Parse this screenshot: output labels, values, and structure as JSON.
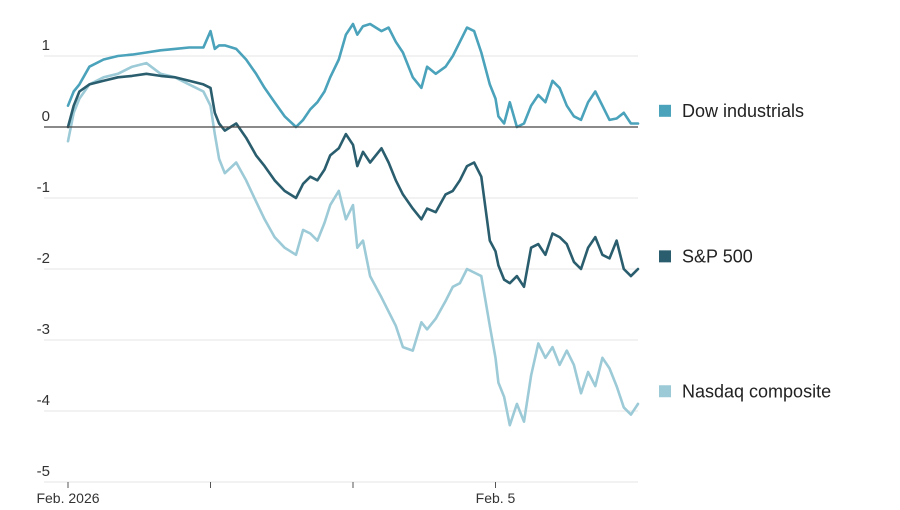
{
  "chart_data": {
    "type": "line",
    "title": "",
    "xlabel": "",
    "ylabel": "",
    "ylim": [
      -5,
      1.6
    ],
    "yticks": [
      1,
      0,
      -1,
      -2,
      -3,
      -4,
      -5
    ],
    "ytick_labels": [
      "1",
      "0",
      "-1",
      "-2",
      "-3",
      "-4",
      "-5"
    ],
    "x_range": [
      0,
      40
    ],
    "xticks": [
      0,
      10,
      20,
      30
    ],
    "xtick_labels": [
      "Feb. 2026",
      "",
      "",
      "Feb. 5"
    ],
    "grid": true,
    "legend_placement": "right, beside each line",
    "series": [
      {
        "name": "Dow industrials",
        "color": "#4aa2bb",
        "x": [
          0,
          0.4,
          0.8,
          1.5,
          2.5,
          3.5,
          4.5,
          5.5,
          6.5,
          7.5,
          8.5,
          9.5,
          10,
          10.3,
          10.6,
          11,
          11.8,
          12.5,
          13.2,
          13.8,
          14.5,
          15.2,
          16,
          16.5,
          17,
          17.5,
          18,
          18.4,
          19,
          19.5,
          20,
          20.3,
          20.7,
          21.2,
          22,
          22.5,
          23,
          23.5,
          24.2,
          24.8,
          25.2,
          25.8,
          26.5,
          27,
          27.5,
          28,
          28.5,
          29,
          29.6,
          30,
          30.2,
          30.6,
          31,
          31.5,
          32,
          32.5,
          33,
          33.5,
          34,
          34.5,
          35,
          35.5,
          36,
          36.5,
          37,
          37.5,
          38,
          38.5,
          39,
          39.5,
          40
        ],
        "y": [
          0.3,
          0.5,
          0.6,
          0.85,
          0.95,
          1.0,
          1.02,
          1.05,
          1.08,
          1.1,
          1.12,
          1.12,
          1.35,
          1.1,
          1.15,
          1.15,
          1.1,
          0.95,
          0.75,
          0.55,
          0.35,
          0.15,
          0.0,
          0.1,
          0.25,
          0.35,
          0.5,
          0.7,
          0.95,
          1.3,
          1.45,
          1.3,
          1.42,
          1.45,
          1.35,
          1.4,
          1.2,
          1.05,
          0.7,
          0.55,
          0.85,
          0.75,
          0.85,
          1.0,
          1.2,
          1.4,
          1.35,
          1.05,
          0.6,
          0.4,
          0.15,
          0.05,
          0.35,
          0.0,
          0.05,
          0.3,
          0.45,
          0.35,
          0.65,
          0.55,
          0.3,
          0.15,
          0.1,
          0.35,
          0.5,
          0.3,
          0.1,
          0.12,
          0.2,
          0.05,
          0.05
        ]
      },
      {
        "name": "S&P 500",
        "color": "#2a5e6e",
        "x": [
          0,
          0.4,
          0.8,
          1.5,
          2.5,
          3.5,
          4.5,
          5.5,
          6.5,
          7.5,
          8.5,
          9.5,
          10,
          10.3,
          10.6,
          11,
          11.8,
          12.5,
          13.2,
          13.8,
          14.5,
          15.2,
          16,
          16.5,
          17,
          17.5,
          18,
          18.4,
          19,
          19.5,
          20,
          20.3,
          20.7,
          21.2,
          22,
          22.5,
          23,
          23.5,
          24.2,
          24.8,
          25.2,
          25.8,
          26.5,
          27,
          27.5,
          28,
          28.5,
          29,
          29.6,
          30,
          30.2,
          30.6,
          31,
          31.5,
          32,
          32.5,
          33,
          33.5,
          34,
          34.5,
          35,
          35.5,
          36,
          36.5,
          37,
          37.5,
          38,
          38.5,
          39,
          39.5,
          40
        ],
        "y": [
          0.0,
          0.3,
          0.5,
          0.6,
          0.65,
          0.7,
          0.72,
          0.75,
          0.72,
          0.7,
          0.65,
          0.6,
          0.55,
          0.2,
          0.05,
          -0.05,
          0.05,
          -0.15,
          -0.4,
          -0.55,
          -0.75,
          -0.9,
          -1.0,
          -0.8,
          -0.7,
          -0.75,
          -0.6,
          -0.4,
          -0.3,
          -0.1,
          -0.25,
          -0.55,
          -0.35,
          -0.5,
          -0.3,
          -0.5,
          -0.75,
          -0.95,
          -1.15,
          -1.3,
          -1.15,
          -1.2,
          -0.95,
          -0.9,
          -0.75,
          -0.55,
          -0.5,
          -0.7,
          -1.6,
          -1.75,
          -1.95,
          -2.15,
          -2.2,
          -2.1,
          -2.25,
          -1.7,
          -1.65,
          -1.8,
          -1.5,
          -1.55,
          -1.65,
          -1.9,
          -2.0,
          -1.7,
          -1.55,
          -1.8,
          -1.85,
          -1.6,
          -2.0,
          -2.1,
          -2.0
        ]
      },
      {
        "name": "Nasdaq composite",
        "color": "#9ccad7",
        "x": [
          0,
          0.4,
          0.8,
          1.5,
          2.5,
          3.5,
          4.5,
          5.5,
          6.5,
          7.5,
          8.5,
          9.5,
          10,
          10.3,
          10.6,
          11,
          11.8,
          12.5,
          13.2,
          13.8,
          14.5,
          15.2,
          16,
          16.5,
          17,
          17.5,
          18,
          18.4,
          19,
          19.5,
          20,
          20.3,
          20.7,
          21.2,
          22,
          22.5,
          23,
          23.5,
          24.2,
          24.8,
          25.2,
          25.8,
          26.5,
          27,
          27.5,
          28,
          28.5,
          29,
          29.6,
          30,
          30.2,
          30.6,
          31,
          31.5,
          32,
          32.5,
          33,
          33.5,
          34,
          34.5,
          35,
          35.5,
          36,
          36.5,
          37,
          37.5,
          38,
          38.5,
          39,
          39.5,
          40
        ],
        "y": [
          -0.2,
          0.2,
          0.4,
          0.6,
          0.7,
          0.75,
          0.85,
          0.9,
          0.75,
          0.7,
          0.6,
          0.5,
          0.3,
          -0.1,
          -0.45,
          -0.65,
          -0.5,
          -0.75,
          -1.05,
          -1.3,
          -1.55,
          -1.7,
          -1.8,
          -1.45,
          -1.5,
          -1.6,
          -1.35,
          -1.1,
          -0.9,
          -1.3,
          -1.1,
          -1.7,
          -1.6,
          -2.1,
          -2.4,
          -2.6,
          -2.8,
          -3.1,
          -3.15,
          -2.75,
          -2.85,
          -2.7,
          -2.45,
          -2.25,
          -2.2,
          -2.0,
          -2.05,
          -2.1,
          -2.8,
          -3.25,
          -3.6,
          -3.8,
          -4.2,
          -3.9,
          -4.15,
          -3.5,
          -3.05,
          -3.25,
          -3.1,
          -3.35,
          -3.15,
          -3.35,
          -3.75,
          -3.45,
          -3.65,
          -3.25,
          -3.4,
          -3.65,
          -3.95,
          -4.05,
          -3.9
        ]
      }
    ],
    "legend": [
      {
        "label": "Dow industrials",
        "color": "#4aa2bb",
        "anchor_y": 0.2
      },
      {
        "label": "S&P 500",
        "color": "#2a5e6e",
        "anchor_y": -1.85
      },
      {
        "label": "Nasdaq composite",
        "color": "#9ccad7",
        "anchor_y": -3.75
      }
    ]
  }
}
